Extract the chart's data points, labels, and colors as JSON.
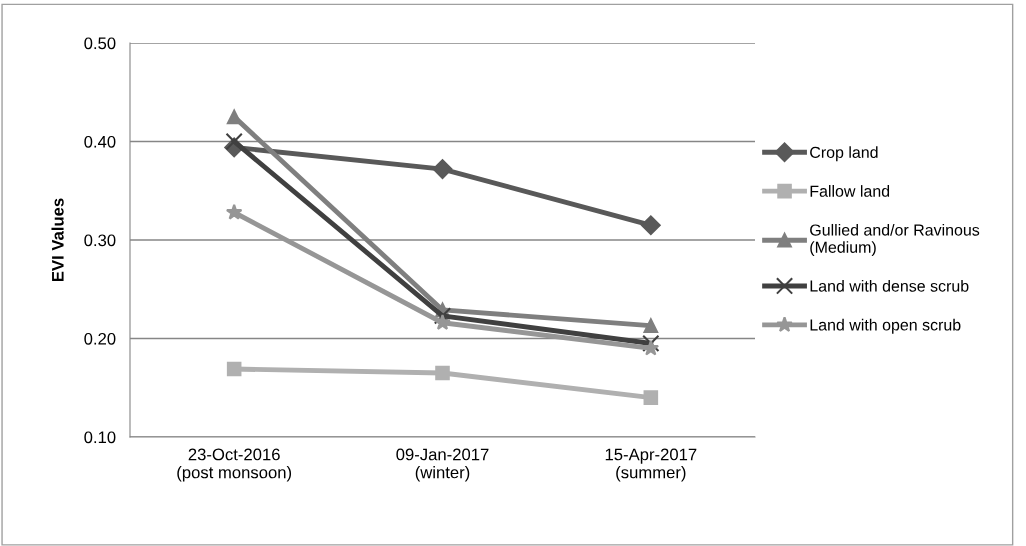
{
  "chart_data": {
    "type": "line",
    "ylabel": "EVI Values",
    "categories": [
      "23-Oct-2016\n(post monsoon)",
      "09-Jan-2017\n(winter)",
      "15-Apr-2017\n(summer)"
    ],
    "series": [
      {
        "name": "Crop land",
        "color": "#595959",
        "marker": "diamond",
        "values": [
          0.394,
          0.372,
          0.315
        ]
      },
      {
        "name": "Fallow land",
        "color": "#b0b0b0",
        "marker": "square",
        "values": [
          0.169,
          0.165,
          0.14
        ]
      },
      {
        "name": "Gullied and/or Ravinous\n(Medium)",
        "color": "#7f7f7f",
        "marker": "triangle",
        "values": [
          0.425,
          0.229,
          0.213
        ]
      },
      {
        "name": "Land with dense scrub",
        "color": "#404040",
        "marker": "cross",
        "values": [
          0.4,
          0.223,
          0.195
        ]
      },
      {
        "name": "Land with open scrub",
        "color": "#969696",
        "marker": "star",
        "values": [
          0.328,
          0.216,
          0.19
        ]
      }
    ],
    "ylim": [
      0.1,
      0.5
    ],
    "yticks": [
      {
        "value": 0.1,
        "label": "0.10"
      },
      {
        "value": 0.2,
        "label": "0.20"
      },
      {
        "value": 0.3,
        "label": "0.30"
      },
      {
        "value": 0.4,
        "label": "0.40"
      },
      {
        "value": 0.5,
        "label": "0.50"
      }
    ],
    "grid": "y",
    "legend": "right"
  }
}
